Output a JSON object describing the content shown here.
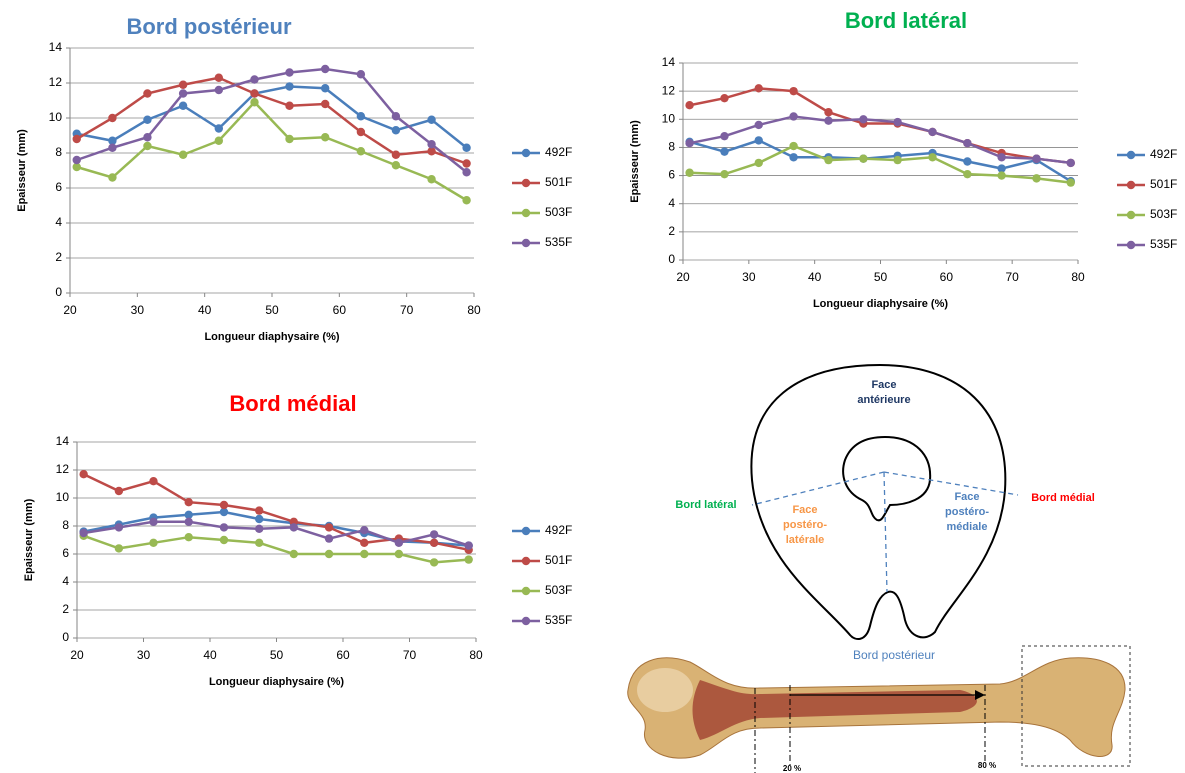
{
  "chart_data": [
    {
      "type": "line",
      "title": "Bord postérieur",
      "title_color": "#4f81bd",
      "xlabel": "Longueur diaphysaire  (%)",
      "ylabel": "Epaisseur  (mm)",
      "x": [
        21,
        26.3,
        31.5,
        36.8,
        42.1,
        47.4,
        52.6,
        57.9,
        63.2,
        68.4,
        73.7,
        78.9
      ],
      "xlim": [
        20,
        80
      ],
      "xticks": [
        20,
        30,
        40,
        50,
        60,
        70,
        80
      ],
      "ylim": [
        0,
        14
      ],
      "yticks": [
        0,
        2,
        4,
        6,
        8,
        10,
        12,
        14
      ],
      "grid": true,
      "series": [
        {
          "name": "492F",
          "color": "#4a7ebb",
          "values": [
            9.1,
            8.7,
            9.9,
            10.7,
            9.4,
            11.4,
            11.8,
            11.7,
            10.1,
            9.3,
            9.9,
            8.3
          ]
        },
        {
          "name": "501F",
          "color": "#be4b48",
          "values": [
            8.8,
            10.0,
            11.4,
            11.9,
            12.3,
            11.4,
            10.7,
            10.8,
            9.2,
            7.9,
            8.1,
            7.4
          ]
        },
        {
          "name": "503F",
          "color": "#98b954",
          "values": [
            7.2,
            6.6,
            8.4,
            7.9,
            8.7,
            10.9,
            8.8,
            8.9,
            8.1,
            7.3,
            6.5,
            5.3
          ]
        },
        {
          "name": "535F",
          "color": "#7d60a0",
          "values": [
            7.6,
            8.3,
            8.9,
            11.4,
            11.6,
            12.2,
            12.6,
            12.8,
            12.5,
            10.1,
            8.5,
            6.9
          ]
        }
      ]
    },
    {
      "type": "line",
      "title": "Bord latéral",
      "title_color": "#00b050",
      "xlabel": "Longueur diaphysaire  (%)",
      "ylabel": "Epaisseur  (mm)",
      "x": [
        21,
        26.3,
        31.5,
        36.8,
        42.1,
        47.4,
        52.6,
        57.9,
        63.2,
        68.4,
        73.7,
        78.9
      ],
      "xlim": [
        20,
        80
      ],
      "xticks": [
        20,
        30,
        40,
        50,
        60,
        70,
        80
      ],
      "ylim": [
        0,
        14
      ],
      "yticks": [
        0,
        2,
        4,
        6,
        8,
        10,
        12,
        14
      ],
      "grid": true,
      "series": [
        {
          "name": "492F",
          "color": "#4a7ebb",
          "values": [
            8.4,
            7.7,
            8.5,
            7.3,
            7.3,
            7.2,
            7.4,
            7.6,
            7.0,
            6.5,
            7.1,
            5.6
          ]
        },
        {
          "name": "501F",
          "color": "#be4b48",
          "values": [
            11.0,
            11.5,
            12.2,
            12.0,
            10.5,
            9.7,
            9.7,
            9.1,
            8.3,
            7.6,
            7.2,
            6.9
          ]
        },
        {
          "name": "503F",
          "color": "#98b954",
          "values": [
            6.2,
            6.1,
            6.9,
            8.1,
            7.1,
            7.2,
            7.1,
            7.3,
            6.1,
            6.0,
            5.8,
            5.5
          ]
        },
        {
          "name": "535F",
          "color": "#7d60a0",
          "values": [
            8.3,
            8.8,
            9.6,
            10.2,
            9.9,
            10.0,
            9.8,
            9.1,
            8.3,
            7.3,
            7.2,
            6.9
          ]
        }
      ]
    },
    {
      "type": "line",
      "title": "Bord médial",
      "title_color": "#ff0000",
      "xlabel": "Longueur diaphysaire  (%)",
      "ylabel": "Epaisseur  (mm)",
      "x": [
        21,
        26.3,
        31.5,
        36.8,
        42.1,
        47.4,
        52.6,
        57.9,
        63.2,
        68.4,
        73.7,
        78.9
      ],
      "xlim": [
        20,
        80
      ],
      "xticks": [
        20,
        30,
        40,
        50,
        60,
        70,
        80
      ],
      "ylim": [
        0,
        14
      ],
      "yticks": [
        0,
        2,
        4,
        6,
        8,
        10,
        12,
        14
      ],
      "grid": true,
      "series": [
        {
          "name": "492F",
          "color": "#4a7ebb",
          "values": [
            7.6,
            8.1,
            8.6,
            8.8,
            9.0,
            8.5,
            8.2,
            8.0,
            7.5,
            6.9,
            6.8,
            6.6
          ]
        },
        {
          "name": "501F",
          "color": "#be4b48",
          "values": [
            11.7,
            10.5,
            11.2,
            9.7,
            9.5,
            9.1,
            8.3,
            7.9,
            6.8,
            7.1,
            6.8,
            6.3
          ]
        },
        {
          "name": "503F",
          "color": "#98b954",
          "values": [
            7.3,
            6.4,
            6.8,
            7.2,
            7.0,
            6.8,
            6.0,
            6.0,
            6.0,
            6.0,
            5.4,
            5.6
          ]
        },
        {
          "name": "535F",
          "color": "#7d60a0",
          "values": [
            7.5,
            7.9,
            8.3,
            8.3,
            7.9,
            7.8,
            7.9,
            7.1,
            7.7,
            6.8,
            7.4,
            6.6
          ]
        }
      ]
    }
  ],
  "diagram": {
    "face_anterieure": [
      "Face",
      "antérieure"
    ],
    "bord_lateral": "Bord latéral",
    "face_postero_laterale": [
      "Face",
      "postéro-",
      "latérale"
    ],
    "face_postero_mediale": [
      "Face",
      "postéro-",
      "médiale"
    ],
    "bord_medial": "Bord médial",
    "bord_posterieur": "Bord postérieur",
    "mark_20": "20 %",
    "mark_80": "80 %"
  }
}
